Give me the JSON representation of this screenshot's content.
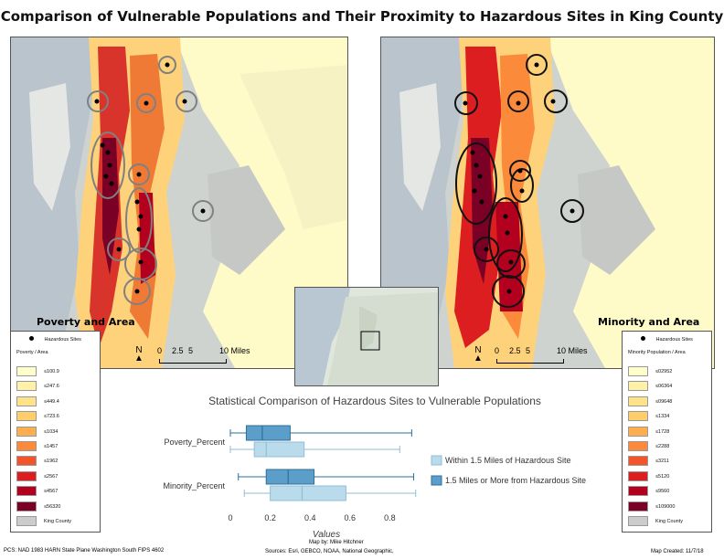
{
  "title": "Comparison of Vulnerable Populations and Their Proximity to Hazardous Sites in King County",
  "left_map": {
    "label": "Poverty and Area"
  },
  "right_map": {
    "label": "Minority and Area"
  },
  "scalebar": {
    "ticks": [
      "0",
      "2.5",
      "5",
      "10 Miles"
    ]
  },
  "north_symbol": "N",
  "left_legend": {
    "point_label": "Hazardous Sites",
    "heading": "Poverty / Area",
    "classes": [
      {
        "label": "≤100.9",
        "color": "#ffffcc"
      },
      {
        "label": "≤247.6",
        "color": "#fff2a8"
      },
      {
        "label": "≤449.4",
        "color": "#ffe38a"
      },
      {
        "label": "≤723.6",
        "color": "#fece6a"
      },
      {
        "label": "≤1034",
        "color": "#fdae4f"
      },
      {
        "label": "≤1457",
        "color": "#fb8a3a"
      },
      {
        "label": "≤1962",
        "color": "#f4542a"
      },
      {
        "label": "≤2567",
        "color": "#dc1e20"
      },
      {
        "label": "≤4567",
        "color": "#b3001e"
      },
      {
        "label": "≤56320",
        "color": "#7a0026"
      },
      {
        "label": "King County",
        "color": "#cccccc"
      }
    ]
  },
  "right_legend": {
    "point_label": "Hazardous Sites",
    "heading": "Minority Population / Area",
    "classes": [
      {
        "label": "≤02952",
        "color": "#ffffcc"
      },
      {
        "label": "≤06364",
        "color": "#fff2a8"
      },
      {
        "label": "≤09648",
        "color": "#ffe38a"
      },
      {
        "label": "≤1334",
        "color": "#fece6a"
      },
      {
        "label": "≤1728",
        "color": "#fdae4f"
      },
      {
        "label": "≤2288",
        "color": "#fb8a3a"
      },
      {
        "label": "≤3211",
        "color": "#f4542a"
      },
      {
        "label": "≤5120",
        "color": "#dc1e20"
      },
      {
        "label": "≤9560",
        "color": "#b3001e"
      },
      {
        "label": "≤109000",
        "color": "#7a0026"
      },
      {
        "label": "King County",
        "color": "#cccccc"
      }
    ]
  },
  "chart_data": {
    "type": "boxplot",
    "title": "Statistical Comparison of Hazardous Sites to Vulnerable Populations",
    "xlabel": "Values",
    "ylabel": "",
    "xlim": [
      0,
      1
    ],
    "xticks": [
      "0",
      "0.2",
      "0.4",
      "0.6",
      "0.8"
    ],
    "categories": [
      "Poverty_Percent",
      "Minority_Percent"
    ],
    "series": [
      {
        "name": "Within 1.5 Miles of Hazardous Site",
        "color": "#b9dbeb",
        "stroke": "#8fbfd6",
        "boxes": [
          {
            "min": 0.0,
            "q1": 0.12,
            "median": 0.18,
            "q3": 0.37,
            "max": 0.85
          },
          {
            "min": 0.07,
            "q1": 0.2,
            "median": 0.36,
            "q3": 0.58,
            "max": 0.93
          }
        ]
      },
      {
        "name": "1.5 Miles or More from Hazardous Site",
        "color": "#5b9ec9",
        "stroke": "#2f6f9a",
        "boxes": [
          {
            "min": 0.0,
            "q1": 0.08,
            "median": 0.16,
            "q3": 0.3,
            "max": 0.91
          },
          {
            "min": 0.04,
            "q1": 0.18,
            "median": 0.29,
            "q3": 0.42,
            "max": 0.92
          }
        ]
      }
    ],
    "legend_position": "right",
    "grid": false
  },
  "footer": {
    "left": "PCS: NAD 1983 HARN State Plane Washington South FIPS 4602",
    "center_line1": "Map by: Mike Hitchner",
    "center_line2": "Sources: Esri, GEBCO, NOAA, National Geographic,",
    "right": "Map Created: 11/7/18"
  }
}
